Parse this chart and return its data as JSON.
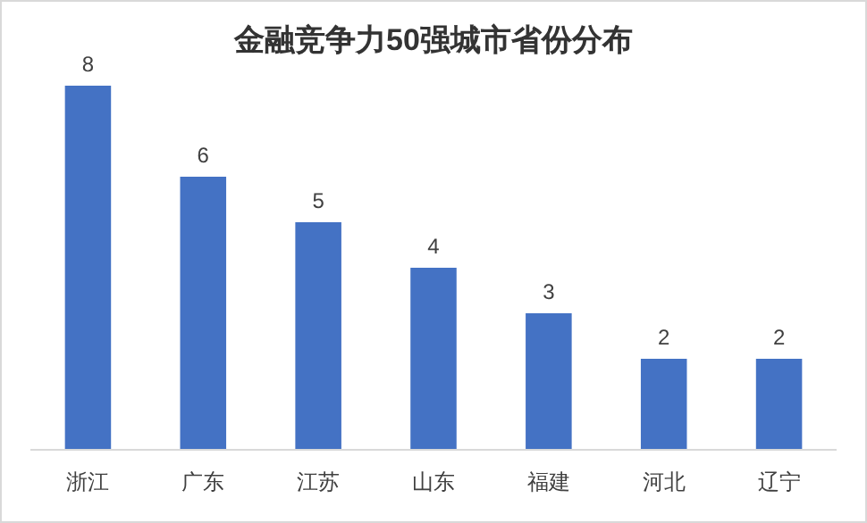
{
  "chart_data": {
    "type": "bar",
    "title": "金融竞争力50强城市省份分布",
    "categories": [
      "浙江",
      "广东",
      "江苏",
      "山东",
      "福建",
      "河北",
      "辽宁"
    ],
    "values": [
      8,
      6,
      5,
      4,
      3,
      2,
      2
    ],
    "color": "#4472c4",
    "data_labels": true
  }
}
